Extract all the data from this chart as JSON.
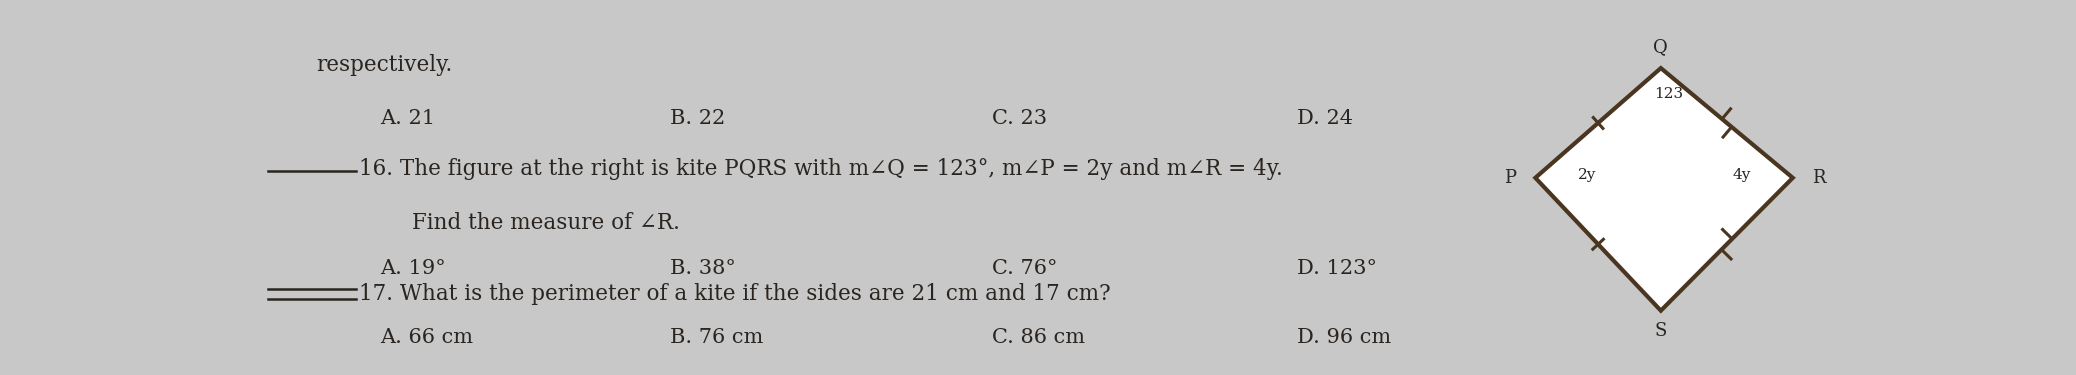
{
  "bg_color": "#c8c8c8",
  "paper_color": "#e8e8e4",
  "text_color": "#2a2520",
  "line0": "respectively.",
  "line1_a": "A. 21",
  "line1_b": "B. 22",
  "line1_c": "C. 23",
  "line1_d": "D. 24",
  "line2_text": "16. The figure at the right is kite PQRS with m∠Q = 123°, m∠P = 2y and m∠R = 4y.",
  "line2b_text": "Find the measure of ∠R.",
  "line3_a": "A. 19°",
  "line3_b": "B. 38°",
  "line3_c": "C. 76°",
  "line3_d": "D. 123°",
  "line4_text": "17. What is the perimeter of a kite if the sides are 21 cm and 17 cm?",
  "line5_a": "A. 66 cm",
  "line5_b": "B. 76 cm",
  "line5_c": "C. 86 cm",
  "line5_d": "D. 96 cm",
  "kite_fill": "#ffffff",
  "kite_edge_color": "#4a3520",
  "font_size_main": 15.5,
  "font_size_choices": 15.0,
  "font_size_kite_label": 13,
  "font_size_kite_angle": 11
}
